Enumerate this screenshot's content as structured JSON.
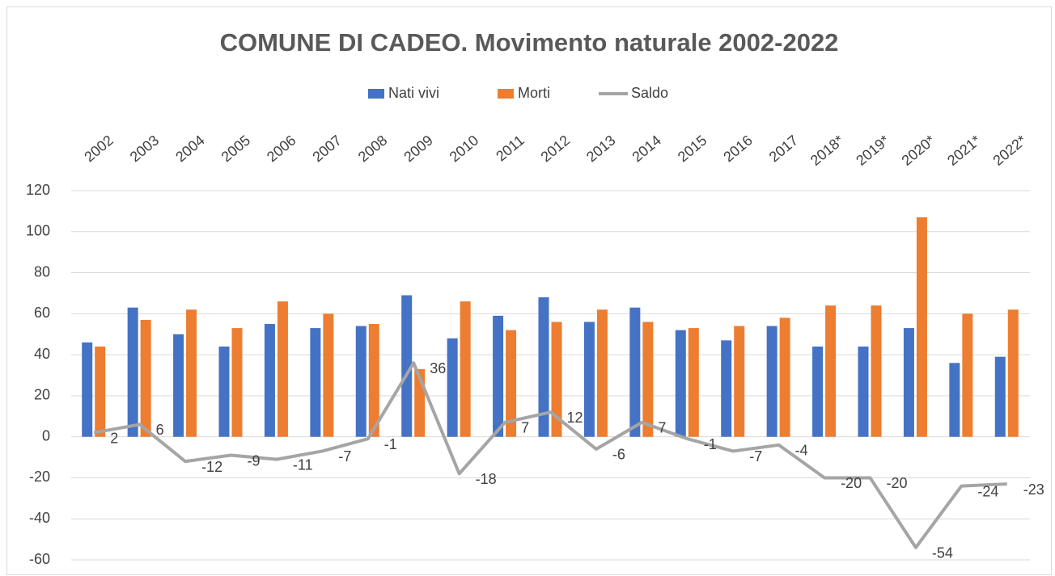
{
  "chart_data": {
    "type": "bar",
    "title": "COMUNE DI CADEO. Movimento naturale 2002-2022",
    "categories": [
      "2002",
      "2003",
      "2004",
      "2005",
      "2006",
      "2007",
      "2008",
      "2009",
      "2010",
      "2011",
      "2012",
      "2013",
      "2014",
      "2015",
      "2016",
      "2017",
      "2018*",
      "2019*",
      "2020*",
      "2021*",
      "2022*"
    ],
    "series": [
      {
        "name": "Nati vivi",
        "type": "bar",
        "color": "#4472c4",
        "values": [
          46,
          63,
          50,
          44,
          55,
          53,
          54,
          69,
          48,
          59,
          68,
          56,
          63,
          52,
          47,
          54,
          44,
          44,
          53,
          36,
          39
        ]
      },
      {
        "name": "Morti",
        "type": "bar",
        "color": "#ed7d31",
        "values": [
          44,
          57,
          62,
          53,
          66,
          60,
          55,
          33,
          66,
          52,
          56,
          62,
          56,
          53,
          54,
          58,
          64,
          64,
          107,
          60,
          62
        ]
      },
      {
        "name": "Saldo",
        "type": "line",
        "color": "#a5a5a5",
        "values": [
          2,
          6,
          -12,
          -9,
          -11,
          -7,
          -1,
          36,
          -18,
          7,
          12,
          -6,
          7,
          -1,
          -7,
          -4,
          -20,
          -20,
          -54,
          -24,
          -23
        ],
        "data_labels": true
      }
    ],
    "ylim": [
      -60,
      120
    ],
    "yticks": [
      -60,
      -40,
      -20,
      0,
      20,
      40,
      60,
      80,
      100,
      120
    ],
    "grid": true,
    "legend": "top"
  }
}
